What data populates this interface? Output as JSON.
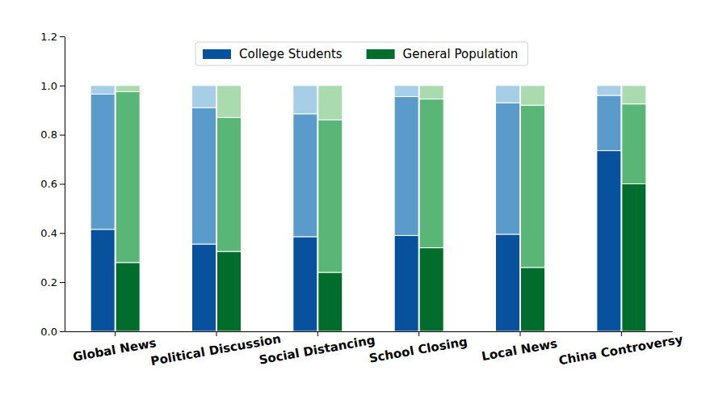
{
  "chart_data": {
    "type": "bar",
    "stacked": true,
    "legend": "upper center",
    "categories": [
      "Global News",
      "Political Discussion",
      "Social Distancing",
      "School Closing",
      "Local News",
      "China Controversy"
    ],
    "series": [
      {
        "name": "College Students",
        "colors": [
          "#08519c",
          "#5b9bcb",
          "#a6cee6"
        ],
        "values": [
          [
            0.415,
            0.55,
            0.035
          ],
          [
            0.355,
            0.555,
            0.09
          ],
          [
            0.385,
            0.5,
            0.115
          ],
          [
            0.39,
            0.565,
            0.045
          ],
          [
            0.395,
            0.535,
            0.07
          ],
          [
            0.735,
            0.225,
            0.04
          ]
        ]
      },
      {
        "name": "General Population",
        "colors": [
          "#006d2c",
          "#5ab677",
          "#a9dbae"
        ],
        "values": [
          [
            0.28,
            0.695,
            0.025
          ],
          [
            0.325,
            0.545,
            0.13
          ],
          [
            0.24,
            0.62,
            0.14
          ],
          [
            0.34,
            0.605,
            0.055
          ],
          [
            0.26,
            0.66,
            0.08
          ],
          [
            0.6,
            0.325,
            0.075
          ]
        ]
      }
    ],
    "ylim": [
      0,
      1.2
    ],
    "yticks": [
      {
        "value": 0,
        "label": "0.0"
      },
      0.2,
      0.4,
      0.6,
      0.8,
      {
        "value": 1,
        "label": "1.0"
      },
      1.2
    ]
  }
}
